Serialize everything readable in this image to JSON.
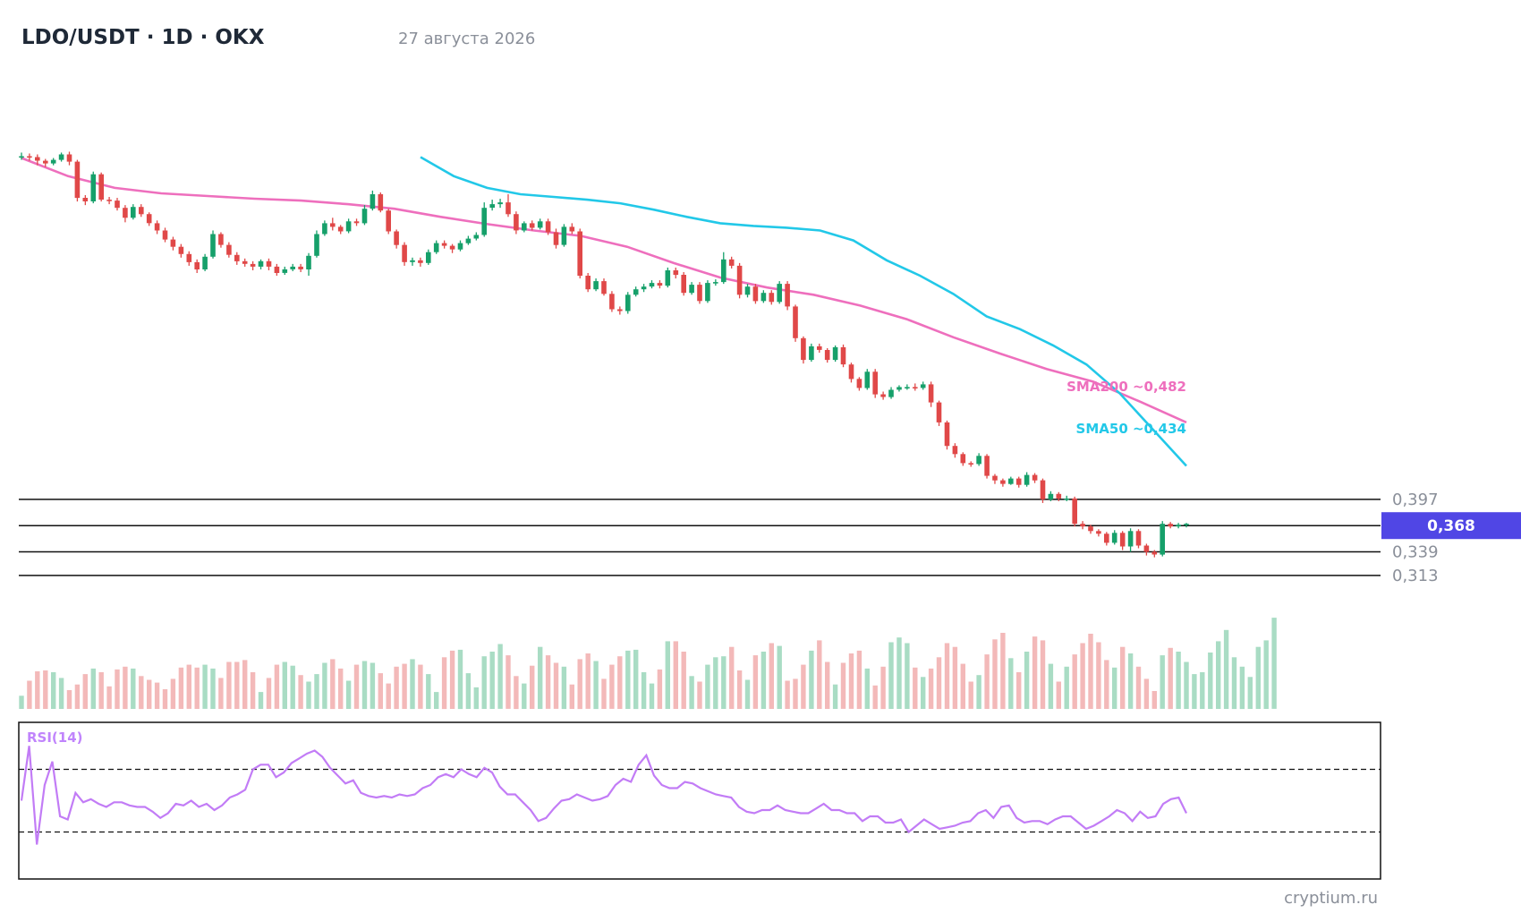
{
  "header": {
    "title": "LDO/USDT · 1D · OKX",
    "date": "27 августа 2026"
  },
  "watermark": "cryptium.ru",
  "colors": {
    "up": "#16a06a",
    "down": "#e04848",
    "up_volume": "#a9dcc4",
    "down_volume": "#f3b9b9",
    "sma50": "#22c8e8",
    "sma200": "#ee6fbd",
    "rsi": "#c27cf6",
    "badge": "#5046e5",
    "level_line": "#111111"
  },
  "chart_data": {
    "type": "candlestick",
    "title": "LDO/USDT · 1D · OKX",
    "price_range": [
      0.3,
      0.82
    ],
    "current_price": {
      "value": 0.368,
      "label": "0,368"
    },
    "levels": [
      {
        "value": 0.397,
        "label": "0,397"
      },
      {
        "value": 0.339,
        "label": "0,339"
      },
      {
        "value": 0.313,
        "label": "0,313"
      }
    ],
    "sma_labels": {
      "sma200": "SMA200 ~0,482",
      "sma50": "SMA50 ~0,434"
    },
    "sma200": [
      0.774,
      0.754,
      0.741,
      0.735,
      0.732,
      0.729,
      0.727,
      0.723,
      0.718,
      0.709,
      0.701,
      0.694,
      0.688,
      0.676,
      0.658,
      0.642,
      0.631,
      0.623,
      0.611,
      0.596,
      0.576,
      0.558,
      0.541,
      0.527,
      0.505,
      0.482
    ],
    "sma50": [
      0.775,
      0.754,
      0.741,
      0.734,
      0.731,
      0.728,
      0.724,
      0.717,
      0.709,
      0.702,
      0.699,
      0.697,
      0.694,
      0.683,
      0.661,
      0.644,
      0.624,
      0.599,
      0.585,
      0.567,
      0.546,
      0.514,
      0.474,
      0.434
    ],
    "candles": [
      [
        0.775,
        0.776,
        0.78,
        0.772
      ],
      [
        0.776,
        0.775,
        0.779,
        0.771
      ],
      [
        0.775,
        0.771,
        0.778,
        0.766
      ],
      [
        0.771,
        0.768,
        0.773,
        0.764
      ],
      [
        0.768,
        0.772,
        0.774,
        0.766
      ],
      [
        0.772,
        0.778,
        0.78,
        0.77
      ],
      [
        0.778,
        0.77,
        0.781,
        0.766
      ],
      [
        0.77,
        0.73,
        0.772,
        0.726
      ],
      [
        0.73,
        0.726,
        0.733,
        0.722
      ],
      [
        0.726,
        0.756,
        0.759,
        0.724
      ],
      [
        0.756,
        0.728,
        0.758,
        0.726
      ],
      [
        0.728,
        0.727,
        0.731,
        0.723
      ],
      [
        0.727,
        0.719,
        0.73,
        0.716
      ],
      [
        0.719,
        0.708,
        0.722,
        0.703
      ],
      [
        0.708,
        0.72,
        0.723,
        0.706
      ],
      [
        0.72,
        0.712,
        0.723,
        0.709
      ],
      [
        0.712,
        0.702,
        0.714,
        0.699
      ],
      [
        0.702,
        0.694,
        0.705,
        0.69
      ],
      [
        0.694,
        0.684,
        0.697,
        0.681
      ],
      [
        0.684,
        0.676,
        0.687,
        0.672
      ],
      [
        0.676,
        0.668,
        0.679,
        0.664
      ],
      [
        0.668,
        0.659,
        0.671,
        0.655
      ],
      [
        0.659,
        0.651,
        0.662,
        0.647
      ],
      [
        0.651,
        0.665,
        0.668,
        0.649
      ],
      [
        0.665,
        0.69,
        0.694,
        0.663
      ],
      [
        0.69,
        0.678,
        0.692,
        0.675
      ],
      [
        0.678,
        0.667,
        0.681,
        0.664
      ],
      [
        0.667,
        0.66,
        0.67,
        0.656
      ],
      [
        0.66,
        0.657,
        0.663,
        0.654
      ],
      [
        0.657,
        0.654,
        0.66,
        0.65
      ],
      [
        0.654,
        0.66,
        0.662,
        0.651
      ],
      [
        0.66,
        0.654,
        0.663,
        0.65
      ],
      [
        0.654,
        0.647,
        0.657,
        0.644
      ],
      [
        0.647,
        0.651,
        0.654,
        0.645
      ],
      [
        0.651,
        0.654,
        0.657,
        0.649
      ],
      [
        0.654,
        0.651,
        0.657,
        0.648
      ],
      [
        0.651,
        0.666,
        0.669,
        0.644
      ],
      [
        0.666,
        0.69,
        0.694,
        0.664
      ],
      [
        0.69,
        0.702,
        0.705,
        0.688
      ],
      [
        0.702,
        0.698,
        0.708,
        0.694
      ],
      [
        0.698,
        0.693,
        0.7,
        0.69
      ],
      [
        0.693,
        0.704,
        0.707,
        0.691
      ],
      [
        0.704,
        0.702,
        0.707,
        0.699
      ],
      [
        0.702,
        0.718,
        0.722,
        0.7
      ],
      [
        0.718,
        0.734,
        0.738,
        0.716
      ],
      [
        0.734,
        0.716,
        0.736,
        0.714
      ],
      [
        0.716,
        0.693,
        0.718,
        0.69
      ],
      [
        0.693,
        0.678,
        0.695,
        0.674
      ],
      [
        0.678,
        0.659,
        0.681,
        0.655
      ],
      [
        0.659,
        0.661,
        0.664,
        0.655
      ],
      [
        0.661,
        0.658,
        0.664,
        0.654
      ],
      [
        0.658,
        0.67,
        0.673,
        0.656
      ],
      [
        0.67,
        0.68,
        0.683,
        0.668
      ],
      [
        0.68,
        0.677,
        0.683,
        0.674
      ],
      [
        0.677,
        0.673,
        0.679,
        0.669
      ],
      [
        0.673,
        0.68,
        0.683,
        0.671
      ],
      [
        0.68,
        0.685,
        0.688,
        0.678
      ],
      [
        0.685,
        0.689,
        0.692,
        0.683
      ],
      [
        0.689,
        0.719,
        0.725,
        0.687
      ],
      [
        0.719,
        0.723,
        0.728,
        0.716
      ],
      [
        0.723,
        0.725,
        0.729,
        0.719
      ],
      [
        0.725,
        0.712,
        0.734,
        0.709
      ],
      [
        0.712,
        0.694,
        0.715,
        0.69
      ],
      [
        0.694,
        0.702,
        0.704,
        0.692
      ],
      [
        0.702,
        0.697,
        0.705,
        0.694
      ],
      [
        0.697,
        0.704,
        0.707,
        0.695
      ],
      [
        0.704,
        0.692,
        0.707,
        0.689
      ],
      [
        0.692,
        0.678,
        0.696,
        0.674
      ],
      [
        0.678,
        0.698,
        0.701,
        0.676
      ],
      [
        0.698,
        0.693,
        0.702,
        0.69
      ],
      [
        0.693,
        0.644,
        0.696,
        0.641
      ],
      [
        0.644,
        0.629,
        0.647,
        0.626
      ],
      [
        0.629,
        0.638,
        0.641,
        0.627
      ],
      [
        0.638,
        0.624,
        0.641,
        0.622
      ],
      [
        0.624,
        0.607,
        0.627,
        0.604
      ],
      [
        0.607,
        0.605,
        0.61,
        0.601
      ],
      [
        0.605,
        0.623,
        0.626,
        0.602
      ],
      [
        0.623,
        0.629,
        0.632,
        0.621
      ],
      [
        0.629,
        0.632,
        0.635,
        0.626
      ],
      [
        0.632,
        0.636,
        0.639,
        0.63
      ],
      [
        0.636,
        0.633,
        0.639,
        0.63
      ],
      [
        0.633,
        0.65,
        0.653,
        0.631
      ],
      [
        0.65,
        0.645,
        0.653,
        0.641
      ],
      [
        0.645,
        0.625,
        0.648,
        0.622
      ],
      [
        0.625,
        0.634,
        0.637,
        0.623
      ],
      [
        0.634,
        0.616,
        0.637,
        0.613
      ],
      [
        0.616,
        0.636,
        0.639,
        0.614
      ],
      [
        0.636,
        0.637,
        0.64,
        0.633
      ],
      [
        0.637,
        0.662,
        0.67,
        0.635
      ],
      [
        0.662,
        0.655,
        0.665,
        0.652
      ],
      [
        0.655,
        0.623,
        0.658,
        0.619
      ],
      [
        0.623,
        0.632,
        0.635,
        0.62
      ],
      [
        0.632,
        0.616,
        0.635,
        0.613
      ],
      [
        0.616,
        0.625,
        0.628,
        0.614
      ],
      [
        0.625,
        0.615,
        0.628,
        0.612
      ],
      [
        0.615,
        0.635,
        0.638,
        0.613
      ],
      [
        0.635,
        0.61,
        0.638,
        0.606
      ],
      [
        0.61,
        0.575,
        0.612,
        0.571
      ],
      [
        0.575,
        0.551,
        0.577,
        0.547
      ],
      [
        0.551,
        0.566,
        0.569,
        0.549
      ],
      [
        0.566,
        0.562,
        0.569,
        0.559
      ],
      [
        0.562,
        0.551,
        0.564,
        0.548
      ],
      [
        0.551,
        0.565,
        0.567,
        0.549
      ],
      [
        0.565,
        0.546,
        0.568,
        0.543
      ],
      [
        0.546,
        0.53,
        0.548,
        0.526
      ],
      [
        0.53,
        0.52,
        0.532,
        0.517
      ],
      [
        0.52,
        0.538,
        0.541,
        0.518
      ],
      [
        0.538,
        0.513,
        0.541,
        0.509
      ],
      [
        0.513,
        0.51,
        0.516,
        0.507
      ],
      [
        0.51,
        0.518,
        0.521,
        0.508
      ],
      [
        0.518,
        0.521,
        0.523,
        0.516
      ],
      [
        0.521,
        0.521,
        0.524,
        0.518
      ],
      [
        0.521,
        0.52,
        0.525,
        0.517
      ],
      [
        0.52,
        0.524,
        0.527,
        0.518
      ],
      [
        0.524,
        0.504,
        0.527,
        0.499
      ],
      [
        0.504,
        0.482,
        0.506,
        0.478
      ],
      [
        0.482,
        0.456,
        0.484,
        0.452
      ],
      [
        0.456,
        0.447,
        0.459,
        0.443
      ],
      [
        0.447,
        0.437,
        0.449,
        0.434
      ],
      [
        0.437,
        0.436,
        0.439,
        0.433
      ],
      [
        0.436,
        0.445,
        0.448,
        0.434
      ],
      [
        0.445,
        0.423,
        0.447,
        0.42
      ],
      [
        0.423,
        0.418,
        0.425,
        0.414
      ],
      [
        0.418,
        0.414,
        0.42,
        0.411
      ],
      [
        0.414,
        0.42,
        0.422,
        0.413
      ],
      [
        0.42,
        0.413,
        0.422,
        0.41
      ],
      [
        0.413,
        0.424,
        0.427,
        0.411
      ],
      [
        0.424,
        0.418,
        0.426,
        0.415
      ],
      [
        0.418,
        0.397,
        0.42,
        0.393
      ],
      [
        0.397,
        0.403,
        0.406,
        0.395
      ],
      [
        0.403,
        0.398,
        0.405,
        0.395
      ],
      [
        0.398,
        0.398,
        0.401,
        0.395
      ],
      [
        0.398,
        0.37,
        0.4,
        0.367
      ],
      [
        0.37,
        0.367,
        0.373,
        0.364
      ],
      [
        0.367,
        0.362,
        0.369,
        0.359
      ],
      [
        0.362,
        0.359,
        0.364,
        0.356
      ],
      [
        0.359,
        0.349,
        0.361,
        0.346
      ],
      [
        0.349,
        0.36,
        0.363,
        0.347
      ],
      [
        0.36,
        0.345,
        0.362,
        0.341
      ],
      [
        0.345,
        0.362,
        0.365,
        0.339
      ],
      [
        0.362,
        0.346,
        0.364,
        0.343
      ],
      [
        0.346,
        0.339,
        0.348,
        0.335
      ],
      [
        0.339,
        0.336,
        0.341,
        0.333
      ],
      [
        0.336,
        0.37,
        0.373,
        0.334
      ],
      [
        0.37,
        0.367,
        0.372,
        0.365
      ],
      [
        0.367,
        0.369,
        0.371,
        0.365
      ],
      [
        0.369,
        0.37,
        0.371,
        0.366
      ]
    ],
    "volume_scale": [
      0,
      1
    ],
    "volumes": [
      0.14,
      0.3,
      0.4,
      0.41,
      0.39,
      0.33,
      0.2,
      0.26,
      0.37,
      0.43,
      0.39,
      0.24,
      0.42,
      0.45,
      0.43,
      0.35,
      0.31,
      0.28,
      0.21,
      0.32,
      0.44,
      0.47,
      0.44,
      0.47,
      0.43,
      0.33,
      0.5,
      0.5,
      0.52,
      0.39,
      0.18,
      0.33,
      0.47,
      0.5,
      0.46,
      0.36,
      0.29,
      0.37,
      0.49,
      0.53,
      0.43,
      0.3,
      0.47,
      0.51,
      0.49,
      0.38,
      0.27,
      0.45,
      0.48,
      0.53,
      0.47,
      0.37,
      0.18,
      0.55,
      0.62,
      0.63,
      0.38,
      0.23,
      0.56,
      0.61,
      0.69,
      0.57,
      0.35,
      0.27,
      0.46,
      0.66,
      0.57,
      0.49,
      0.45,
      0.26,
      0.53,
      0.59,
      0.51,
      0.32,
      0.47,
      0.56,
      0.62,
      0.63,
      0.39,
      0.27,
      0.42,
      0.72,
      0.72,
      0.61,
      0.35,
      0.29,
      0.47,
      0.55,
      0.56,
      0.66,
      0.41,
      0.31,
      0.57,
      0.61,
      0.7,
      0.67,
      0.3,
      0.32,
      0.47,
      0.62,
      0.73,
      0.5,
      0.26,
      0.49,
      0.59,
      0.62,
      0.43,
      0.25,
      0.45,
      0.71,
      0.76,
      0.7,
      0.44,
      0.34,
      0.43,
      0.55,
      0.7,
      0.66,
      0.48,
      0.29,
      0.36,
      0.58,
      0.74,
      0.81,
      0.54,
      0.39,
      0.61,
      0.77,
      0.73,
      0.48,
      0.29,
      0.45,
      0.58,
      0.7,
      0.8,
      0.71,
      0.52,
      0.44,
      0.66,
      0.59,
      0.45,
      0.32,
      0.19,
      0.57,
      0.65,
      0.61,
      0.5,
      0.37,
      0.39,
      0.6,
      0.72,
      0.84,
      0.55,
      0.45,
      0.34,
      0.66,
      0.73,
      0.97
    ],
    "rsi": {
      "label": "RSI(14)",
      "range": [
        0,
        100
      ],
      "levels": [
        70,
        30
      ],
      "values": [
        50,
        85,
        22,
        60,
        75,
        40,
        38,
        55,
        49,
        51,
        48,
        46,
        49,
        49,
        47,
        46,
        46,
        43,
        39,
        42,
        48,
        47,
        50,
        46,
        48,
        44,
        47,
        52,
        54,
        57,
        70,
        73,
        73,
        65,
        68,
        74,
        77,
        80,
        82,
        78,
        71,
        66,
        61,
        63,
        55,
        53,
        52,
        53,
        52,
        54,
        53,
        54,
        58,
        60,
        65,
        67,
        65,
        70,
        67,
        65,
        71,
        68,
        59,
        54,
        54,
        49,
        44,
        37,
        39,
        45,
        50,
        51,
        54,
        52,
        50,
        51,
        53,
        60,
        64,
        62,
        73,
        79,
        66,
        60,
        58,
        58,
        62,
        61,
        58,
        56,
        54,
        53,
        52,
        46,
        43,
        42,
        44,
        44,
        47,
        44,
        43,
        42,
        42,
        45,
        48,
        44,
        44,
        42,
        42,
        37,
        40,
        40,
        36,
        36,
        38,
        30,
        34,
        38,
        35,
        32,
        33,
        34,
        36,
        37,
        42,
        44,
        39,
        46,
        47,
        39,
        36,
        37,
        37,
        35,
        38,
        40,
        40,
        36,
        32,
        34,
        37,
        40,
        44,
        42,
        37,
        43,
        39,
        40,
        48,
        51,
        52,
        42
      ]
    }
  }
}
